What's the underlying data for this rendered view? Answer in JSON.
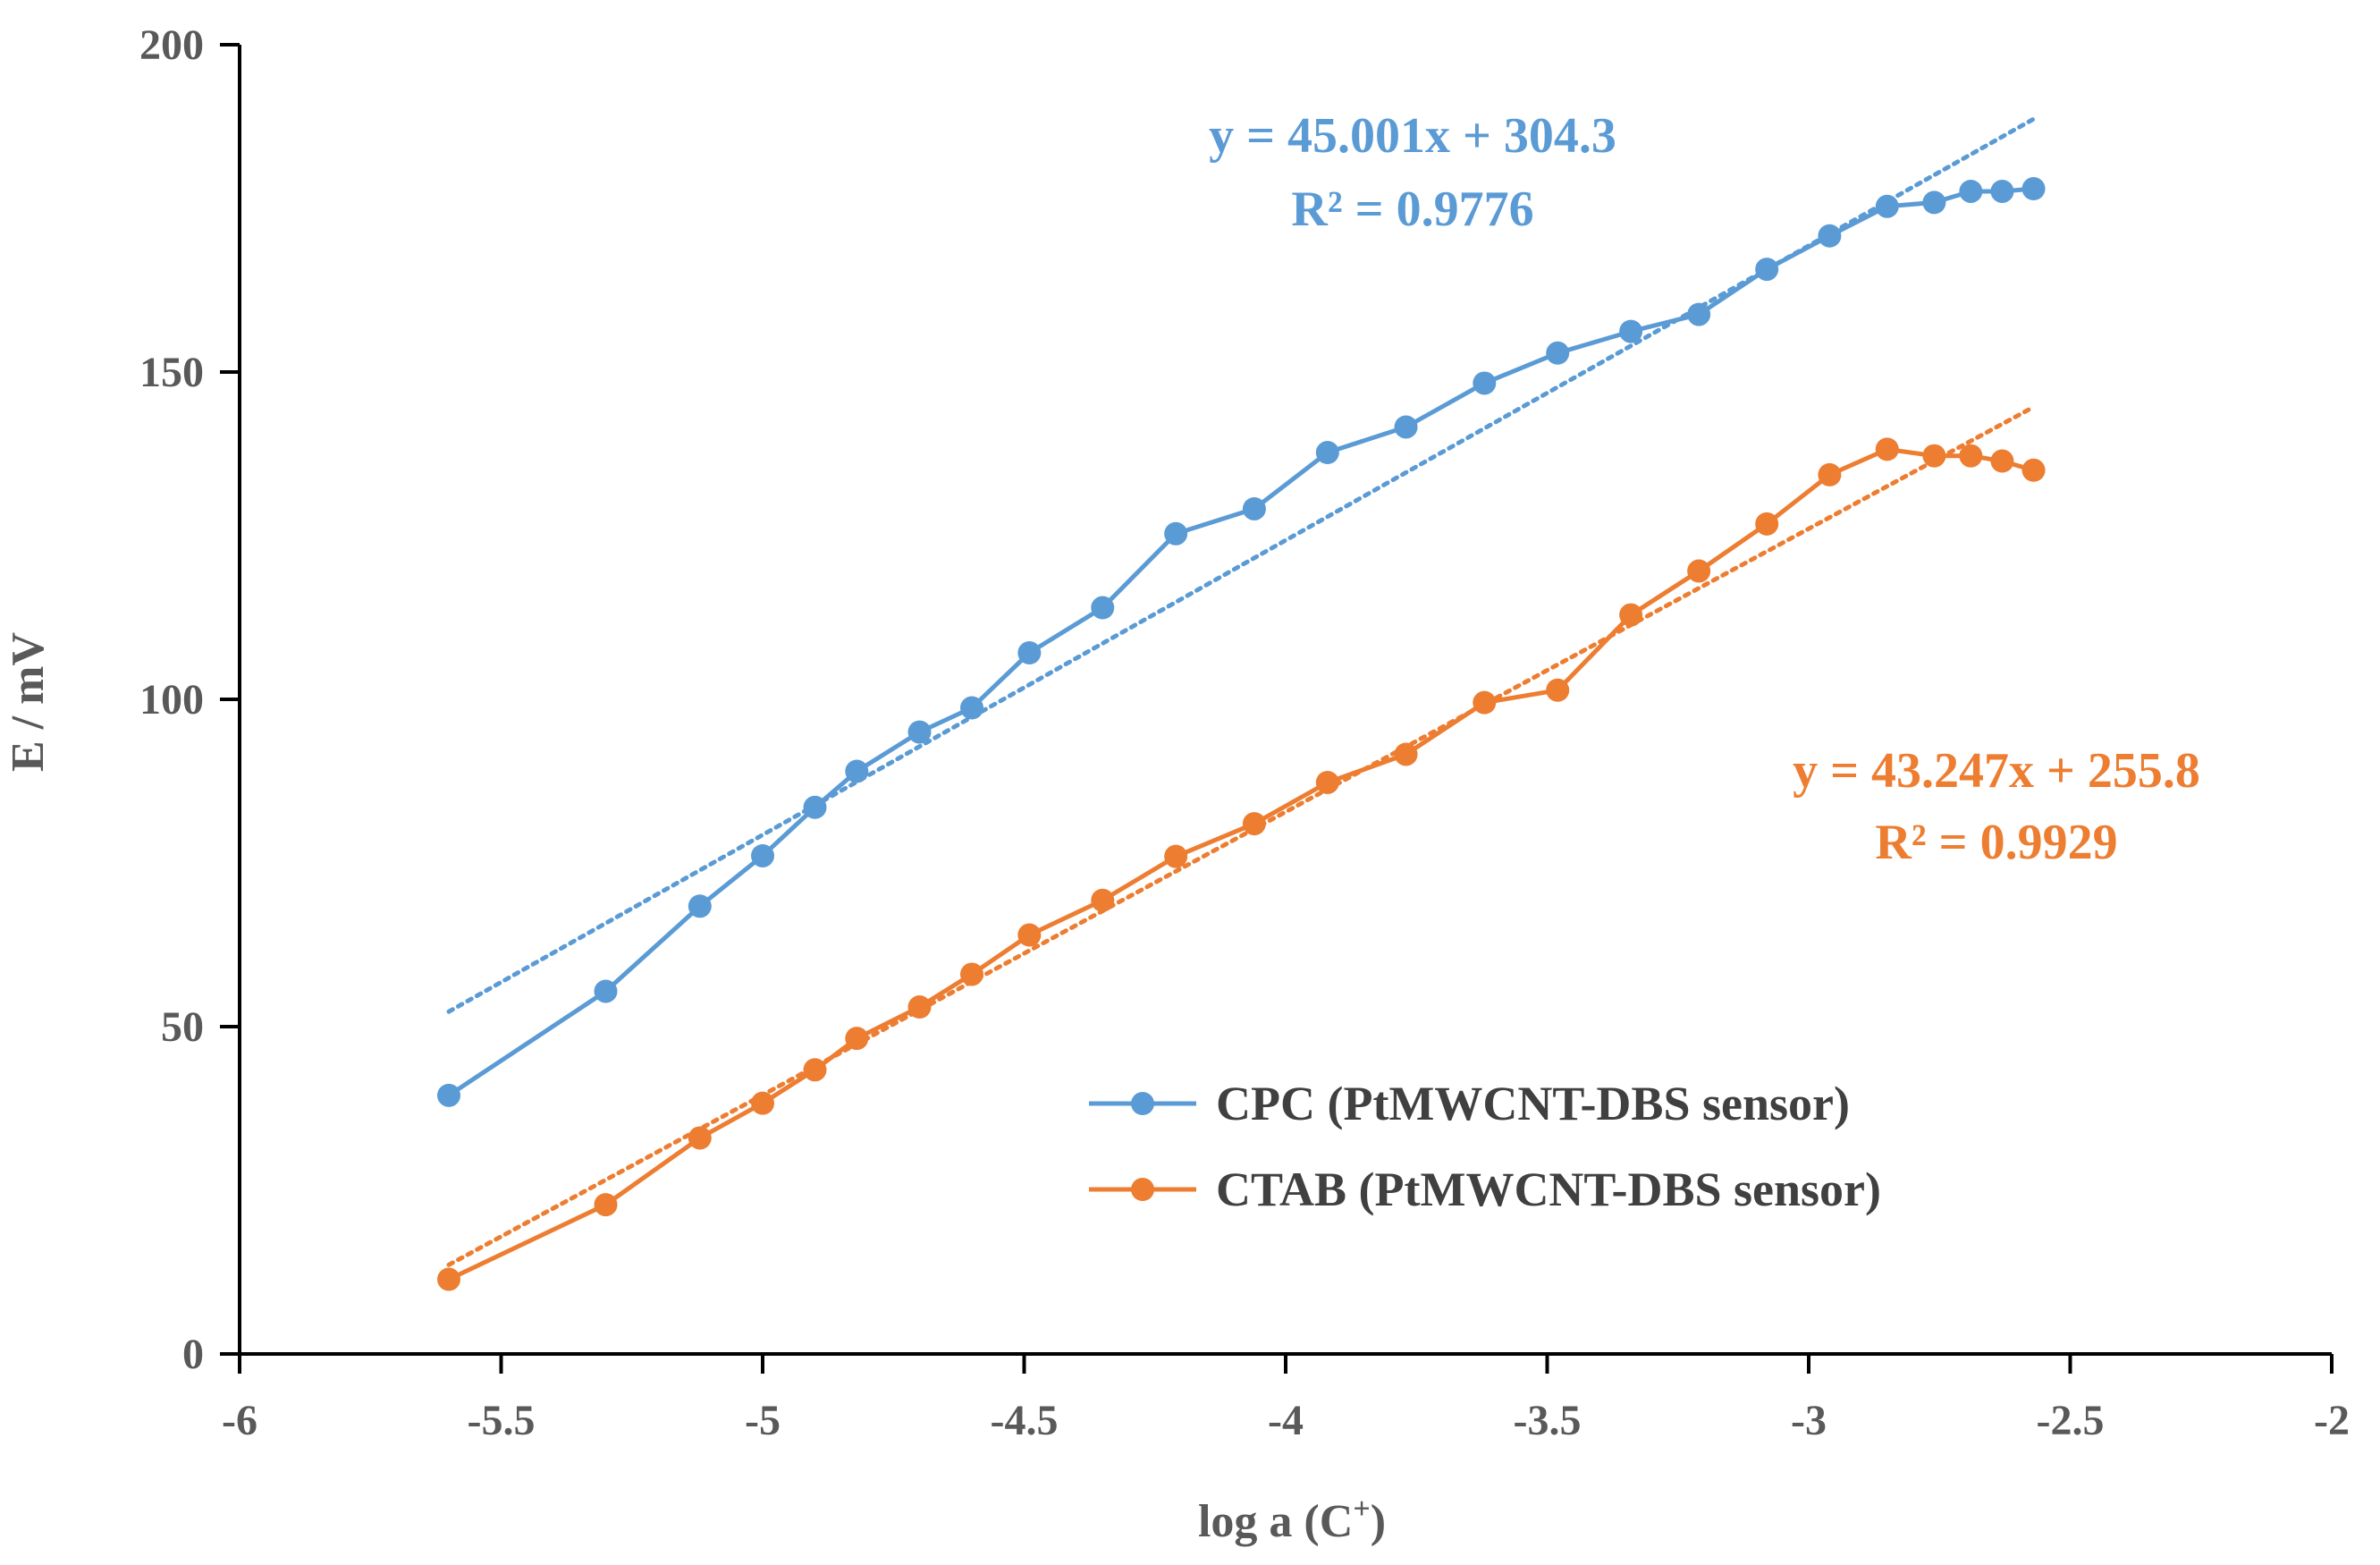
{
  "chart_data": {
    "type": "line",
    "title": "",
    "xlabel": "log a (C",
    "xlabel_sup": "+",
    "xlabel_close": ")",
    "ylabel": "E / mV",
    "xlim": [
      -6,
      -2
    ],
    "ylim": [
      0,
      200
    ],
    "x_ticks": [
      -6,
      -5.5,
      -5,
      -4.5,
      -4,
      -3.5,
      -3,
      -2.5,
      -2
    ],
    "x_tick_labels": [
      "-6",
      "-5.5",
      "-5",
      "-4.5",
      "-4",
      "-3.5",
      "-3",
      "-2.5",
      "-2"
    ],
    "y_ticks": [
      0,
      50,
      100,
      150,
      200
    ],
    "y_tick_labels": [
      "0",
      "50",
      "100",
      "150",
      "200"
    ],
    "grid": false,
    "legend_position": "bottom-right",
    "series": [
      {
        "name": "CPC (PtMWCNT-DBS sensor)",
        "color": "#5B9BD5",
        "x": [
          -5.6,
          -5.3,
          -5.12,
          -5.0,
          -4.9,
          -4.82,
          -4.7,
          -4.6,
          -4.49,
          -4.35,
          -4.21,
          -4.06,
          -3.92,
          -3.77,
          -3.62,
          -3.48,
          -3.34,
          -3.21,
          -3.08,
          -2.96,
          -2.85,
          -2.76,
          -2.69,
          -2.63,
          -2.57
        ],
        "values": [
          39.5,
          55.4,
          68.4,
          76.1,
          83.5,
          89.0,
          95.0,
          98.7,
          107.1,
          114.0,
          125.3,
          129.1,
          137.7,
          141.6,
          148.3,
          152.9,
          156.2,
          158.8,
          165.7,
          170.8,
          175.3,
          175.9,
          177.6,
          177.6,
          178.0
        ],
        "trendline": {
          "slope": 45.001,
          "intercept": 304.3,
          "x_range": [
            -5.6,
            -2.57
          ]
        },
        "equation": "y = 45.001x + 304.3",
        "r2": "R² = 0.9776"
      },
      {
        "name": "CTAB (PtMWCNT-DBS sensor)",
        "color": "#ED7D31",
        "x": [
          -5.6,
          -5.3,
          -5.12,
          -5.0,
          -4.9,
          -4.82,
          -4.7,
          -4.6,
          -4.49,
          -4.35,
          -4.21,
          -4.06,
          -3.92,
          -3.77,
          -3.62,
          -3.48,
          -3.34,
          -3.21,
          -3.08,
          -2.96,
          -2.85,
          -2.76,
          -2.69,
          -2.63,
          -2.57
        ],
        "values": [
          11.4,
          22.8,
          33.0,
          38.3,
          43.4,
          48.2,
          53.0,
          58.0,
          64.0,
          69.3,
          76.0,
          81.0,
          87.3,
          91.6,
          99.5,
          101.4,
          112.9,
          119.6,
          126.8,
          134.3,
          138.2,
          137.2,
          137.2,
          136.4,
          135.0
        ],
        "trendline": {
          "slope": 43.247,
          "intercept": 255.8,
          "x_range": [
            -5.6,
            -2.57
          ]
        },
        "equation": "y = 43.247x + 255.8",
        "r2": "R² = 0.9929"
      }
    ]
  }
}
